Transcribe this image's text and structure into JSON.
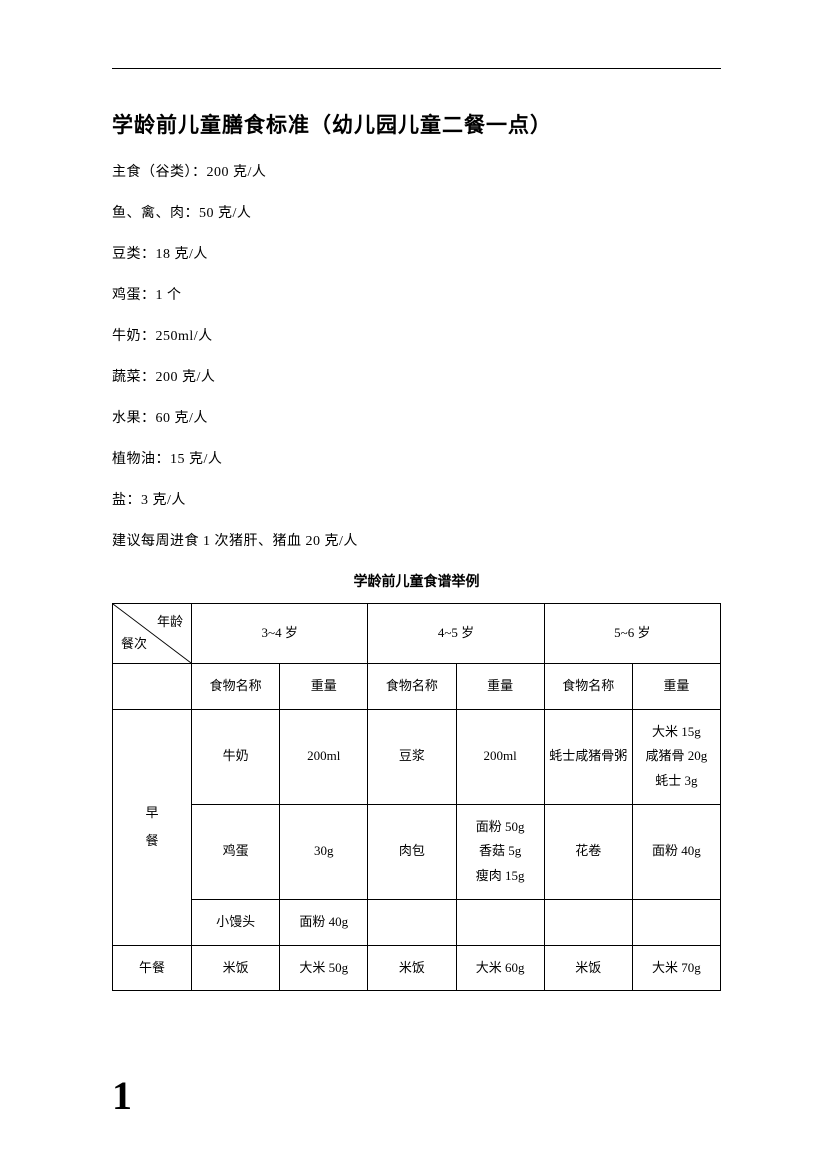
{
  "title": "学龄前儿童膳食标准（幼儿园儿童二餐一点）",
  "standards": [
    "主食（谷类）：200 克/人",
    "鱼、禽、肉：50 克/人",
    "豆类：18 克/人",
    "鸡蛋：1 个",
    "牛奶：250ml/人",
    "蔬菜：200 克/人",
    "水果：60 克/人",
    "植物油：15 克/人",
    "盐：3 克/人",
    "建议每周进食 1 次猪肝、猪血 20 克/人"
  ],
  "tableTitle": "学龄前儿童食谱举例",
  "table": {
    "diagTop": "年龄",
    "diagBottom": "餐次",
    "ageGroups": [
      "3~4 岁",
      "4~5 岁",
      "5~6 岁"
    ],
    "subHeaders": {
      "food": "食物名称",
      "weight": "重量"
    },
    "meals": {
      "breakfast": {
        "label": "早\n餐",
        "rows": [
          {
            "a_food": "牛奶",
            "a_wt": "200ml",
            "b_food": "豆浆",
            "b_wt": "200ml",
            "c_food": "蚝士咸猪骨粥",
            "c_wt": "大米 15g\n咸猪骨 20g\n蚝士 3g"
          },
          {
            "a_food": "鸡蛋",
            "a_wt": "30g",
            "b_food": "肉包",
            "b_wt": "面粉 50g\n香菇 5g\n瘦肉 15g",
            "c_food": "花卷",
            "c_wt": "面粉 40g"
          },
          {
            "a_food": "小馒头",
            "a_wt": "面粉 40g",
            "b_food": "",
            "b_wt": "",
            "c_food": "",
            "c_wt": ""
          }
        ]
      },
      "lunch": {
        "label": "午餐",
        "rows": [
          {
            "a_food": "米饭",
            "a_wt": "大米 50g",
            "b_food": "米饭",
            "b_wt": "大米 60g",
            "c_food": "米饭",
            "c_wt": "大米 70g"
          }
        ]
      }
    }
  },
  "pageNumber": "1",
  "colors": {
    "text": "#000000",
    "bg": "#ffffff",
    "border": "#000000"
  }
}
